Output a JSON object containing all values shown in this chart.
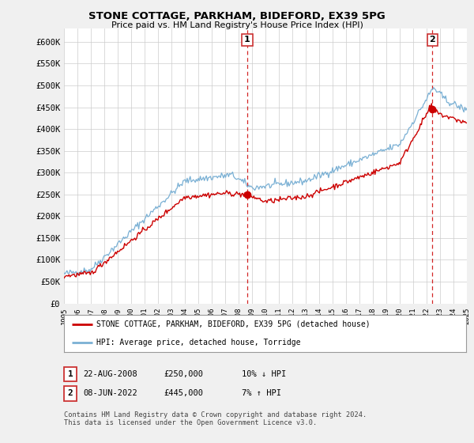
{
  "title": "STONE COTTAGE, PARKHAM, BIDEFORD, EX39 5PG",
  "subtitle": "Price paid vs. HM Land Registry's House Price Index (HPI)",
  "ylabel_ticks": [
    "£0",
    "£50K",
    "£100K",
    "£150K",
    "£200K",
    "£250K",
    "£300K",
    "£350K",
    "£400K",
    "£450K",
    "£500K",
    "£550K",
    "£600K"
  ],
  "ytick_values": [
    0,
    50000,
    100000,
    150000,
    200000,
    250000,
    300000,
    350000,
    400000,
    450000,
    500000,
    550000,
    600000
  ],
  "ylim": [
    0,
    630000
  ],
  "legend_line1": "STONE COTTAGE, PARKHAM, BIDEFORD, EX39 5PG (detached house)",
  "legend_line2": "HPI: Average price, detached house, Torridge",
  "annotation1_date": "22-AUG-2008",
  "annotation1_price": "£250,000",
  "annotation1_hpi": "10% ↓ HPI",
  "annotation2_date": "08-JUN-2022",
  "annotation2_price": "£445,000",
  "annotation2_hpi": "7% ↑ HPI",
  "footnote": "Contains HM Land Registry data © Crown copyright and database right 2024.\nThis data is licensed under the Open Government Licence v3.0.",
  "red_color": "#cc0000",
  "blue_color": "#7ab0d4",
  "sale1_x": 2008.65,
  "sale1_y": 250000,
  "sale2_x": 2022.44,
  "sale2_y": 445000,
  "xmin": 1995,
  "xmax": 2025
}
